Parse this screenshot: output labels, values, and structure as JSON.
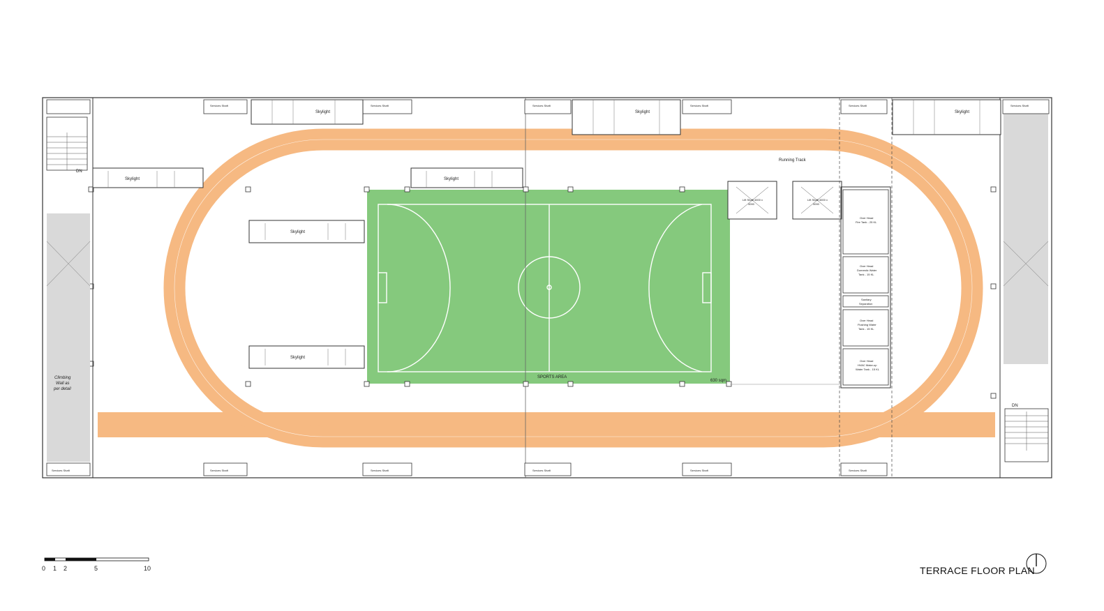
{
  "colors": {
    "track": "#f6b982",
    "field": "#85c97d",
    "service": "#d9d9d9",
    "outline": "#333333"
  },
  "labels": {
    "skylight": "Skylight",
    "services_shaft": "Services Shaft",
    "running_track": "Running Track",
    "sports_area": "SPORTS AREA",
    "sports_area_size": "630 sqm",
    "dn": "DN",
    "climbing_line1": "Climbing",
    "climbing_line2": "Wall as",
    "climbing_line3": "per detail",
    "lift1_line1": "Lift Shaft 4000 x",
    "lift1_line2": "4000",
    "lift2_line1": "Lift Shaft 4000 x",
    "lift2_line2": "4000",
    "tank1_line1": "Over Head",
    "tank1_line2": "Fire Tank - 25 KL",
    "tank2_line1": "Over Head",
    "tank2_line2": "Domestic Water",
    "tank2_line3": "Tank - 15 KL",
    "sanitary_line1": "Sanitary",
    "sanitary_line2": "Separation",
    "tank3_line1": "Over Head",
    "tank3_line2": "Flushing Water",
    "tank3_line3": "Tank - 15 KL",
    "tank4_line1": "Over Head",
    "tank4_line2": "HVAC Make-up",
    "tank4_line3": "Water Tank - 15 KL"
  },
  "scale_bar": {
    "ticks": [
      "0",
      "1",
      "2",
      "5",
      "10"
    ]
  },
  "title": "TERRACE FLOOR PLAN",
  "north_arrow": "north-arrow-icon"
}
